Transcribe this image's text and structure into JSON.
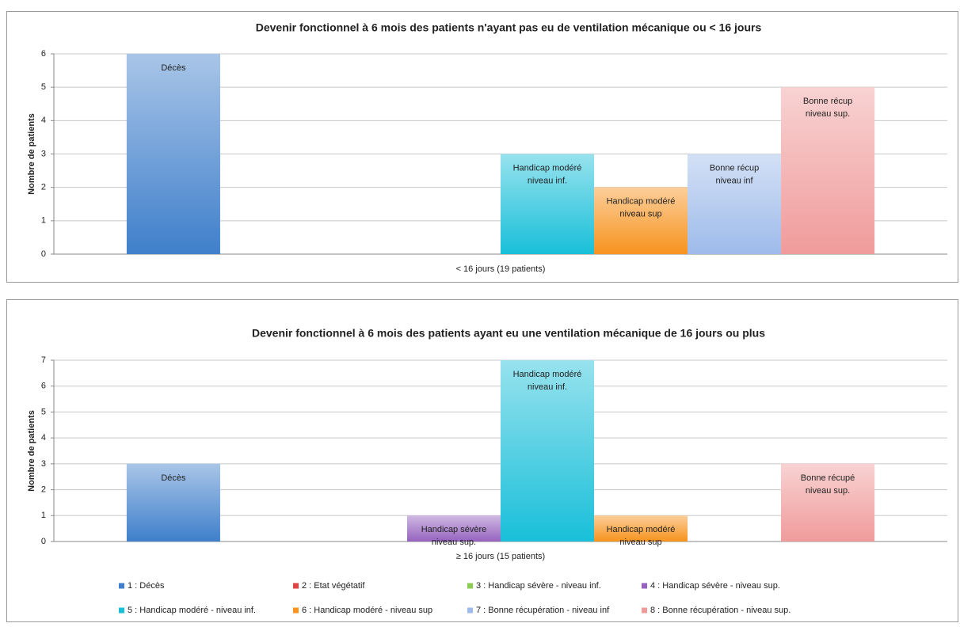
{
  "chart_data": [
    {
      "type": "bar",
      "title": "Devenir fonctionnel à 6 mois des patients n'ayant pas eu de ventilation mécanique ou < 16 jours",
      "ylabel": "Nombre de patients",
      "categories": [
        "< 16 jours (19 patients)"
      ],
      "ylim": [
        0,
        6
      ],
      "yticks": [
        0,
        1,
        2,
        3,
        4,
        5,
        6
      ],
      "grid": true,
      "series": [
        {
          "color": "#3f7fcb",
          "values": [
            6
          ],
          "labels": [
            [
              "Décès"
            ]
          ]
        },
        {
          "color": "#e04545",
          "values": [
            0
          ],
          "labels": [
            null
          ]
        },
        {
          "color": "#8ccc55",
          "values": [
            0
          ],
          "labels": [
            null
          ]
        },
        {
          "color": "#9563bf",
          "values": [
            0
          ],
          "labels": [
            null
          ]
        },
        {
          "color": "#19bfd9",
          "values": [
            3
          ],
          "labels": [
            [
              "Handicap modéré",
              "niveau inf."
            ]
          ]
        },
        {
          "color": "#f7931e",
          "values": [
            2
          ],
          "labels": [
            [
              "Handicap modéré",
              "niveau sup"
            ]
          ]
        },
        {
          "color": "#9ebbea",
          "values": [
            3
          ],
          "labels": [
            [
              "Bonne récup",
              "niveau inf"
            ]
          ]
        },
        {
          "color": "#f09b9b",
          "values": [
            5
          ],
          "labels": [
            [
              "Bonne récup",
              "niveau sup."
            ]
          ]
        }
      ]
    },
    {
      "type": "bar",
      "title": "Devenir fonctionnel à 6 mois des patients ayant eu une ventilation mécanique de 16 jours ou plus",
      "ylabel": "Nombre de patients",
      "categories": [
        "≥ 16 jours (15 patients)"
      ],
      "ylim": [
        0,
        7
      ],
      "yticks": [
        0,
        1,
        2,
        3,
        4,
        5,
        6,
        7
      ],
      "grid": true,
      "legend": "bottom",
      "series": [
        {
          "name": "1 : Décès",
          "color": "#3f7fcb",
          "values": [
            3
          ],
          "labels": [
            [
              "Décès"
            ]
          ]
        },
        {
          "name": "2 : Etat végétatif",
          "color": "#e04545",
          "values": [
            0
          ],
          "labels": [
            null
          ]
        },
        {
          "name": "3 : Handicap sévère - niveau inf.",
          "color": "#8ccc55",
          "values": [
            0
          ],
          "labels": [
            null
          ]
        },
        {
          "name": "4 : Handicap sévère - niveau sup.",
          "color": "#9563bf",
          "values": [
            1
          ],
          "labels": [
            [
              "Handicap sévère",
              "niveau sup."
            ]
          ]
        },
        {
          "name": "5 : Handicap modéré - niveau inf.",
          "color": "#19bfd9",
          "values": [
            7
          ],
          "labels": [
            [
              "Handicap modéré",
              "niveau inf."
            ]
          ]
        },
        {
          "name": "6 : Handicap modéré - niveau sup",
          "color": "#f7931e",
          "values": [
            1
          ],
          "labels": [
            [
              "Handicap modéré",
              "niveau sup"
            ]
          ]
        },
        {
          "name": "7 : Bonne récupération - niveau inf",
          "color": "#9ebbea",
          "values": [
            0
          ],
          "labels": [
            null
          ]
        },
        {
          "name": "8 : Bonne récupération - niveau sup.",
          "color": "#f09b9b",
          "values": [
            3
          ],
          "labels": [
            [
              "Bonne récupé",
              "niveau sup."
            ]
          ]
        }
      ]
    }
  ]
}
